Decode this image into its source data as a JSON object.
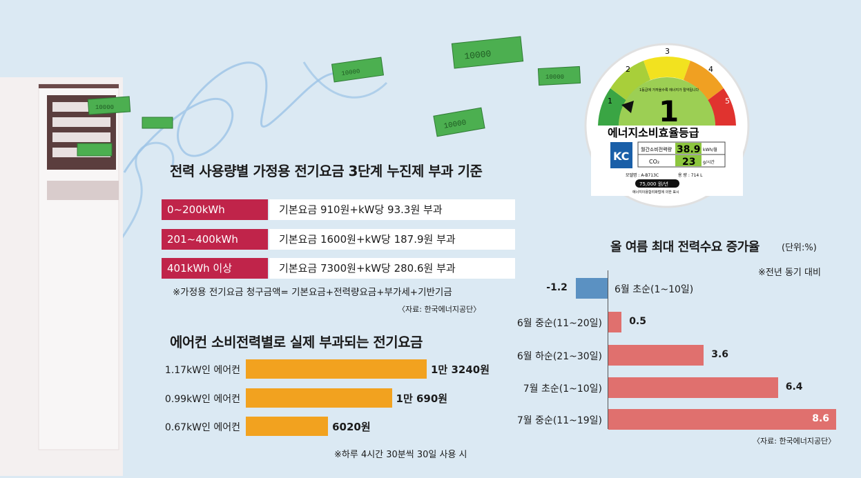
{
  "tariff": {
    "title": "전력 사용량별 가정용 전기요금 3단계 누진제 부과 기준",
    "rows": [
      {
        "label": "0~200kWh",
        "value": "기본요금 910원+kW당 93.3원 부과"
      },
      {
        "label": "201~400kWh",
        "value": "기본요금 1600원+kW당 187.9원 부과"
      },
      {
        "label": "401kWh 이상",
        "value": "기본요금 7300원+kW당 280.6원 부과"
      }
    ],
    "note": "※가정용 전기요금 청구금액= 기본요금+전력량요금+부가세+기반기금",
    "source": "〈자료: 한국에너지공단〉"
  },
  "ac_chart": {
    "title": "에어컨 소비전력별로 실제 부과되는 전기요금",
    "note": "※하루 4시간 30분씩 30일 사용 시"
  },
  "demand_chart": {
    "title": "올 여름 최대 전력수요 증가율",
    "unit": "(단위:%)",
    "note": "※전년 동기 대비",
    "source": "〈자료: 한국에너지공단〉"
  },
  "energy_label": {
    "grades": [
      "1",
      "2",
      "3",
      "4",
      "5"
    ],
    "grade": "1",
    "small_text": "1등급에 가까울수록 에너지가 절약됩니다",
    "title": "에너지소비효율등급",
    "row1_label": "월간소비전력량",
    "row1_value": "38.9",
    "row1_unit": "kWh/월",
    "row2_label": "CO₂",
    "row2_value": "23",
    "row2_unit": "g/시간",
    "model_label": "모델명 : A-B713C",
    "volume_label": "용   량 : 714 L",
    "price": "75,000 원/년",
    "footer": "에너지이용합리화법에 의한 표시",
    "logo_text": "KC"
  },
  "money_text": "10000",
  "chart_data": [
    {
      "type": "bar",
      "orientation": "horizontal",
      "title": "에어컨 소비전력별로 실제 부과되는 전기요금",
      "categories": [
        "1.17kW인 에어컨",
        "0.99kW인 에어컨",
        "0.67kW인 에어컨"
      ],
      "values": [
        13240,
        10690,
        6020
      ],
      "value_labels": [
        "1만 3240원",
        "1만 690원",
        "6020원"
      ],
      "unit": "원",
      "colors": {
        "bar": "#f2a21f"
      }
    },
    {
      "type": "bar",
      "orientation": "horizontal",
      "title": "올 여름 최대 전력수요 증가율",
      "unit": "%",
      "categories": [
        "6월 초순(1~10일)",
        "6월 중순(11~20일)",
        "6월 하순(21~30일)",
        "7월 초순(1~10일)",
        "7월 중순(11~19일)"
      ],
      "values": [
        -1.2,
        0.5,
        3.6,
        6.4,
        8.6
      ],
      "value_labels": [
        "-1.2",
        "0.5",
        "3.6",
        "6.4",
        "8.6"
      ],
      "colors": {
        "positive": "#e0706e",
        "negative": "#5b91c2"
      }
    }
  ]
}
